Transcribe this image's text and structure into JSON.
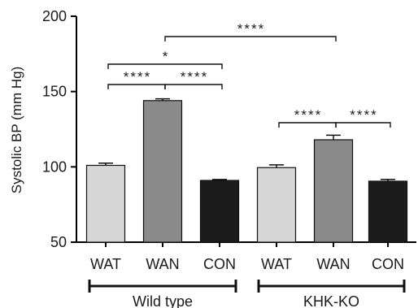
{
  "chart_data": {
    "type": "bar",
    "title": "",
    "ylabel": "Systolic BP (mm Hg)",
    "xlabel": "",
    "ylim": [
      50,
      200
    ],
    "yticks": [
      50,
      100,
      150,
      200
    ],
    "groups": [
      {
        "name": "Wild type",
        "bars": [
          {
            "category": "WAT",
            "value": 101,
            "error": 1.5,
            "color": "#d6d6d6"
          },
          {
            "category": "WAN",
            "value": 144,
            "error": 1.2,
            "color": "#8a8a8a"
          },
          {
            "category": "CON",
            "value": 91,
            "error": 0.6,
            "color": "#1c1c1c"
          }
        ]
      },
      {
        "name": "KHK-KO",
        "bars": [
          {
            "category": "WAT",
            "value": 99.5,
            "error": 1.8,
            "color": "#d6d6d6"
          },
          {
            "category": "WAN",
            "value": 118,
            "error": 3.0,
            "color": "#8a8a8a"
          },
          {
            "category": "CON",
            "value": 90.5,
            "error": 1.2,
            "color": "#1c1c1c"
          }
        ]
      }
    ],
    "significance": [
      {
        "from": [
          0,
          0
        ],
        "to": [
          0,
          1
        ],
        "label": "****"
      },
      {
        "from": [
          0,
          1
        ],
        "to": [
          0,
          2
        ],
        "label": "****"
      },
      {
        "from": [
          0,
          0
        ],
        "to": [
          0,
          2
        ],
        "label": "*"
      },
      {
        "from": [
          0,
          1
        ],
        "to": [
          1,
          1
        ],
        "label": "****"
      },
      {
        "from": [
          1,
          0
        ],
        "to": [
          1,
          1
        ],
        "label": "****"
      },
      {
        "from": [
          1,
          1
        ],
        "to": [
          1,
          2
        ],
        "label": "****"
      }
    ],
    "grid": false,
    "legend": "none"
  }
}
